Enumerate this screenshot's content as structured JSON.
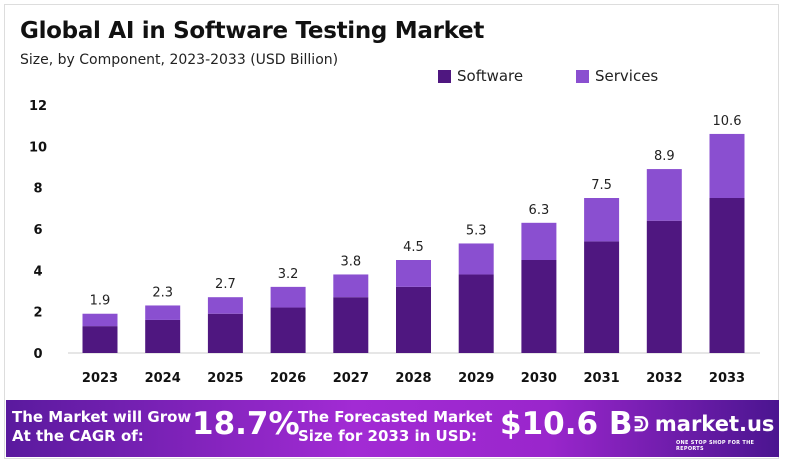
{
  "chart_data": {
    "type": "bar",
    "stacked": true,
    "title": "Global AI in Software Testing Market",
    "subtitle": "Size, by Component, 2023-2033 (USD Billion)",
    "categories": [
      "2023",
      "2024",
      "2025",
      "2026",
      "2027",
      "2028",
      "2029",
      "2030",
      "2031",
      "2032",
      "2033"
    ],
    "series": [
      {
        "name": "Software",
        "color": "#4f1780",
        "values": [
          1.3,
          1.6,
          1.9,
          2.2,
          2.7,
          3.2,
          3.8,
          4.5,
          5.4,
          6.4,
          7.5
        ]
      },
      {
        "name": "Services",
        "color": "#8a4fd0",
        "values": [
          0.6,
          0.7,
          0.8,
          1.0,
          1.1,
          1.3,
          1.5,
          1.8,
          2.1,
          2.5,
          3.1
        ]
      }
    ],
    "totals": [
      "1.9",
      "2.3",
      "2.7",
      "3.2",
      "3.8",
      "4.5",
      "5.3",
      "6.3",
      "7.5",
      "8.9",
      "10.6"
    ],
    "yticks": [
      "0",
      "2",
      "4",
      "6",
      "8",
      "10",
      "12"
    ],
    "ylim": [
      0,
      12
    ],
    "grid": false,
    "legend_position": "top-right"
  },
  "footer": {
    "cagr_text_1": "The Market will Grow",
    "cagr_text_2": "At the CAGR of:",
    "cagr_value": "18.7%",
    "forecast_text_1": "The Forecasted Market",
    "forecast_text_2": "Size for 2033 in USD:",
    "forecast_value": "$10.6 B",
    "logo_text": "market.us",
    "logo_tagline": "ONE STOP SHOP FOR THE REPORTS"
  }
}
